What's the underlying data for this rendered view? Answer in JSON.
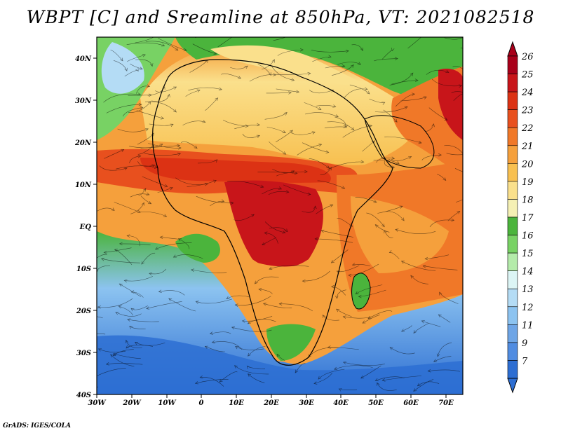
{
  "title": "WBPT [C] and Sreamline at 850hPa, VT: 2021082518",
  "credit": "GrADS: IGES/COLA",
  "map": {
    "lon_range": [
      -30,
      75
    ],
    "lat_range": [
      -40,
      45
    ],
    "lon_ticks": [
      "30W",
      "20W",
      "10W",
      "0",
      "10E",
      "20E",
      "30E",
      "40E",
      "50E",
      "60E",
      "70E"
    ],
    "lat_ticks": [
      "40N",
      "30N",
      "20N",
      "10N",
      "EQ",
      "10S",
      "20S",
      "30S",
      "40S"
    ]
  },
  "colorbar": {
    "levels": [
      "26",
      "25",
      "24",
      "23",
      "22",
      "21",
      "20",
      "19",
      "18",
      "17",
      "16",
      "15",
      "14",
      "13",
      "12",
      "11",
      "9",
      "7"
    ],
    "colors": [
      "#a8001a",
      "#c8151a",
      "#dc3214",
      "#e8501e",
      "#f07828",
      "#f5a03c",
      "#f8c050",
      "#fae08c",
      "#f5f0b4",
      "#4bb43c",
      "#78d264",
      "#b4ebaa",
      "#dcf5f5",
      "#b4dcf5",
      "#8cc3f0",
      "#6ea5e6",
      "#508ce1",
      "#2d6ed2"
    ]
  }
}
